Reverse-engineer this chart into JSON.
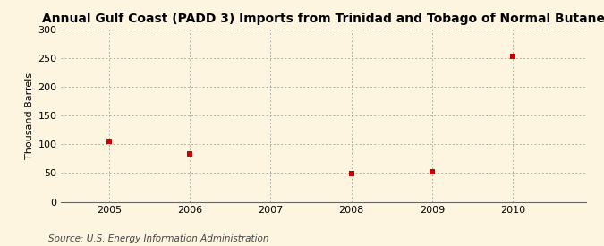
{
  "title": "Annual Gulf Coast (PADD 3) Imports from Trinidad and Tobago of Normal Butane",
  "ylabel": "Thousand Barrels",
  "source": "Source: U.S. Energy Information Administration",
  "x_values": [
    2005,
    2006,
    2008,
    2009,
    2010
  ],
  "y_values": [
    105,
    83,
    49,
    52,
    253
  ],
  "xlim": [
    2004.4,
    2010.9
  ],
  "ylim": [
    0,
    300
  ],
  "yticks": [
    0,
    50,
    100,
    150,
    200,
    250,
    300
  ],
  "xticks": [
    2005,
    2006,
    2007,
    2008,
    2009,
    2010
  ],
  "marker_color": "#cc0000",
  "marker_style": "s",
  "marker_size": 4,
  "background_color": "#fdf5e0",
  "grid_color": "#999999",
  "title_fontsize": 10,
  "axis_fontsize": 8,
  "tick_fontsize": 8,
  "source_fontsize": 7.5
}
